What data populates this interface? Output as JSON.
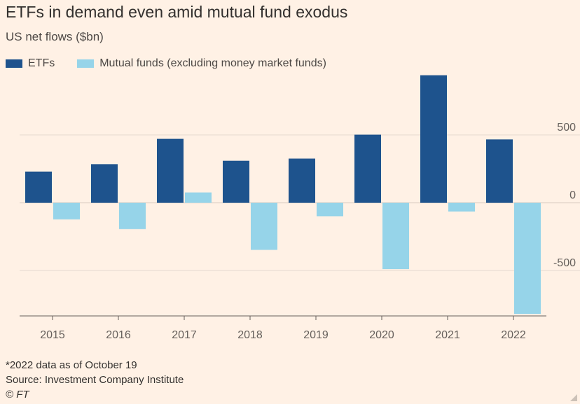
{
  "title": "ETFs in demand even amid mutual fund exodus",
  "subtitle": "US net flows ($bn)",
  "footnote": "*2022 data as of October 19",
  "source": "Source: Investment Company Institute",
  "copyright": "© FT",
  "colors": {
    "etf": "#1e538d",
    "mutual": "#96d4e9",
    "grid": "#e6d9ce",
    "axis": "#66605c",
    "text": "#66605c"
  },
  "chart_data": {
    "type": "bar",
    "title": "ETFs in demand even amid mutual fund exodus",
    "ylabel": "US net flows ($bn)",
    "categories": [
      "2015",
      "2016",
      "2017",
      "2018",
      "2019",
      "2020",
      "2021",
      "2022"
    ],
    "series": [
      {
        "name": "ETFs",
        "values": [
          229,
          283,
          471,
          310,
          326,
          502,
          940,
          467
        ]
      },
      {
        "name": "Mutual funds (excluding money market funds)",
        "values": [
          -123,
          -195,
          75,
          -348,
          -100,
          -490,
          -65,
          -820
        ]
      }
    ],
    "ylim": [
      -820,
      940
    ],
    "yticks": [
      500,
      0,
      -500
    ],
    "ytick_labels": [
      "500",
      "0",
      "-500"
    ],
    "grid": true,
    "legend": "top-left"
  }
}
